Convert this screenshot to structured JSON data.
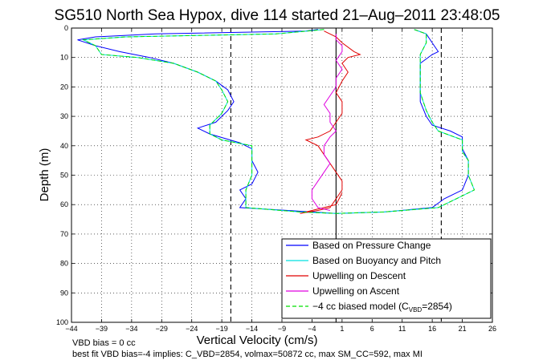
{
  "chart_data": {
    "type": "line",
    "title": "SG510 North Sea Hypox, dive 114 started 21–Aug–2011 23:48:05",
    "xlabel": "Vertical Velocity (cm/s)",
    "ylabel": "Depth (m)",
    "xlim": [
      -44,
      26
    ],
    "ylim": [
      0,
      100
    ],
    "y_reversed": true,
    "grid": true,
    "x_ticks": [
      -44,
      -39,
      -34,
      -29,
      -24,
      -19,
      -14,
      -9,
      -4,
      1,
      6,
      11,
      16,
      21,
      26
    ],
    "x_tick_labels": [
      "−44",
      "−39",
      "−34",
      "−29",
      "−24",
      "−19",
      "−14",
      "−9",
      "−4",
      "1",
      "6",
      "11",
      "16",
      "21",
      "26"
    ],
    "y_ticks": [
      0,
      10,
      20,
      30,
      40,
      50,
      60,
      70,
      80,
      90,
      100
    ],
    "y_tick_labels": [
      "0",
      "10",
      "20",
      "30",
      "40",
      "50",
      "60",
      "70",
      "80",
      "90",
      "100"
    ],
    "vlines": [
      {
        "x": -17.5,
        "style": "dashed",
        "color": "#000000"
      },
      {
        "x": 17.5,
        "style": "dashed",
        "color": "#000000"
      },
      {
        "x": 0,
        "style": "solid",
        "color": "#000000"
      }
    ],
    "legend_position": "bottom-right",
    "series": [
      {
        "name": "Based on Pressure Change",
        "color": "#0000ff",
        "points": [
          [
            -3,
            0.5
          ],
          [
            -5,
            1
          ],
          [
            -30,
            2
          ],
          [
            -40,
            3
          ],
          [
            -43,
            4
          ],
          [
            -40,
            6
          ],
          [
            -36,
            8
          ],
          [
            -31,
            10
          ],
          [
            -27,
            12
          ],
          [
            -23,
            15
          ],
          [
            -20,
            18
          ],
          [
            -18,
            21
          ],
          [
            -17,
            25
          ],
          [
            -18,
            28
          ],
          [
            -20,
            32
          ],
          [
            -23,
            34
          ],
          [
            -21,
            36
          ],
          [
            -16,
            39
          ],
          [
            -14,
            41
          ],
          [
            -14,
            45
          ],
          [
            -13,
            49
          ],
          [
            -14,
            53
          ],
          [
            -16,
            55
          ],
          [
            -15,
            58
          ],
          [
            -16,
            61
          ],
          [
            -8,
            62
          ],
          [
            0,
            63
          ],
          [
            8,
            62.5
          ],
          [
            16,
            61
          ],
          [
            18,
            58
          ],
          [
            21,
            55
          ],
          [
            22,
            50
          ],
          [
            22,
            45
          ],
          [
            21,
            41
          ],
          [
            21,
            37
          ],
          [
            19,
            35
          ],
          [
            16,
            33
          ],
          [
            15,
            30
          ],
          [
            14,
            25
          ],
          [
            14,
            18
          ],
          [
            14,
            12
          ],
          [
            16,
            9
          ],
          [
            17,
            8
          ],
          [
            16,
            5
          ],
          [
            15,
            2
          ],
          [
            13,
            0.5
          ]
        ]
      },
      {
        "name": "Based on Buoyancy and Pitch",
        "color": "#00e0e0",
        "points": [
          [
            -2,
            0.5
          ],
          [
            -10,
            2
          ],
          [
            -35,
            3
          ],
          [
            -42,
            4
          ],
          [
            -40,
            6
          ],
          [
            -39,
            9
          ],
          [
            -33,
            10
          ],
          [
            -27,
            12
          ],
          [
            -23,
            15
          ],
          [
            -20,
            18
          ],
          [
            -19,
            21
          ],
          [
            -18,
            25
          ],
          [
            -19,
            29
          ],
          [
            -21,
            33
          ],
          [
            -21,
            36
          ],
          [
            -19,
            38
          ],
          [
            -14,
            40
          ],
          [
            -14,
            45
          ],
          [
            -14,
            50
          ],
          [
            -15,
            55
          ],
          [
            -15,
            58
          ],
          [
            -15,
            61
          ],
          [
            -6,
            62.5
          ],
          [
            0,
            63
          ],
          [
            8,
            62.5
          ],
          [
            17,
            61
          ],
          [
            20,
            58
          ],
          [
            23,
            55
          ],
          [
            22,
            50
          ],
          [
            22,
            45
          ],
          [
            21,
            42
          ],
          [
            21,
            38
          ],
          [
            17,
            35
          ],
          [
            16,
            32
          ],
          [
            15,
            28
          ],
          [
            14,
            22
          ],
          [
            14,
            15
          ],
          [
            14,
            12
          ],
          [
            14,
            9
          ],
          [
            15,
            5
          ],
          [
            15,
            2
          ],
          [
            13,
            0.5
          ]
        ]
      },
      {
        "name": "Upwelling on Descent",
        "color": "#e00000",
        "points": [
          [
            -2,
            1
          ],
          [
            0,
            3
          ],
          [
            1,
            5
          ],
          [
            3,
            8
          ],
          [
            4,
            9
          ],
          [
            2,
            10
          ],
          [
            1,
            12
          ],
          [
            2,
            15
          ],
          [
            1,
            18
          ],
          [
            0,
            22
          ],
          [
            1,
            25
          ],
          [
            1,
            29
          ],
          [
            0,
            32
          ],
          [
            -1,
            35
          ],
          [
            -3,
            37
          ],
          [
            -5,
            38
          ],
          [
            -3,
            40
          ],
          [
            -2,
            43
          ],
          [
            -1,
            46
          ],
          [
            0,
            49
          ],
          [
            1,
            52
          ],
          [
            1,
            55
          ],
          [
            0,
            58
          ],
          [
            -1,
            61
          ],
          [
            -3,
            62
          ],
          [
            -6,
            63
          ],
          [
            -4,
            62
          ],
          [
            0,
            60
          ],
          [
            1,
            56
          ]
        ]
      },
      {
        "name": "Upwelling on Ascent",
        "color": "#e000e0",
        "points": [
          [
            -1,
            62
          ],
          [
            -3,
            61
          ],
          [
            -4,
            58
          ],
          [
            -4,
            55
          ],
          [
            -3,
            52
          ],
          [
            -2,
            49
          ],
          [
            -1,
            46
          ],
          [
            -2,
            43
          ],
          [
            -2,
            40
          ],
          [
            -1,
            37
          ],
          [
            0,
            35
          ],
          [
            -1,
            32
          ],
          [
            -1,
            29
          ],
          [
            -2,
            26
          ],
          [
            -1,
            23
          ],
          [
            0,
            20
          ],
          [
            0,
            17
          ],
          [
            1,
            14
          ],
          [
            0,
            11
          ],
          [
            1,
            8
          ],
          [
            1,
            6
          ],
          [
            0,
            4
          ],
          [
            0,
            2
          ]
        ]
      },
      {
        "name": "−4 cc biased model",
        "color": "#00e000",
        "style": "dashed",
        "points": [
          [
            -2,
            0.5
          ],
          [
            -10,
            2
          ],
          [
            -35,
            3
          ],
          [
            -42,
            4
          ],
          [
            -40,
            6
          ],
          [
            -39,
            9
          ],
          [
            -33,
            10
          ],
          [
            -27,
            12
          ],
          [
            -23,
            15
          ],
          [
            -20,
            18
          ],
          [
            -19,
            21
          ],
          [
            -18,
            25
          ],
          [
            -19,
            29
          ],
          [
            -21,
            33
          ],
          [
            -21,
            36
          ],
          [
            -19,
            38
          ],
          [
            -14,
            40
          ],
          [
            -14,
            45
          ],
          [
            -14,
            50
          ],
          [
            -15,
            55
          ],
          [
            -15,
            58
          ],
          [
            -15,
            61
          ],
          [
            -6,
            62.5
          ],
          [
            0,
            63
          ],
          [
            8,
            62.5
          ],
          [
            17,
            61
          ],
          [
            20,
            58
          ],
          [
            23,
            55
          ],
          [
            22,
            50
          ],
          [
            22,
            45
          ],
          [
            21,
            42
          ],
          [
            21,
            38
          ],
          [
            17,
            35
          ],
          [
            16,
            32
          ],
          [
            15,
            28
          ],
          [
            14,
            22
          ],
          [
            14,
            15
          ],
          [
            14,
            12
          ],
          [
            14,
            9
          ],
          [
            15,
            5
          ],
          [
            15,
            2
          ],
          [
            13,
            0.5
          ]
        ]
      }
    ],
    "legend": {
      "entries": [
        {
          "label": "Based on Pressure Change",
          "color": "#0000ff",
          "style": "solid"
        },
        {
          "label": "Based on Buoyancy and Pitch",
          "color": "#00e0e0",
          "style": "solid"
        },
        {
          "label": "Upwelling on Descent",
          "color": "#e00000",
          "style": "solid"
        },
        {
          "label": "Upwelling on Ascent",
          "color": "#e000e0",
          "style": "solid"
        },
        {
          "label_prefix": "−4 cc biased model (C",
          "label_sub": "VBD",
          "label_suffix": "=2854)",
          "color": "#00e000",
          "style": "dashed"
        }
      ]
    },
    "annotations": {
      "vbd_bias": "VBD bias = 0 cc",
      "best_fit": "best fit VBD bias=-4 implies: C_VBD=2854, volmax=50872 cc, max SM_CC=592, max MI"
    }
  }
}
